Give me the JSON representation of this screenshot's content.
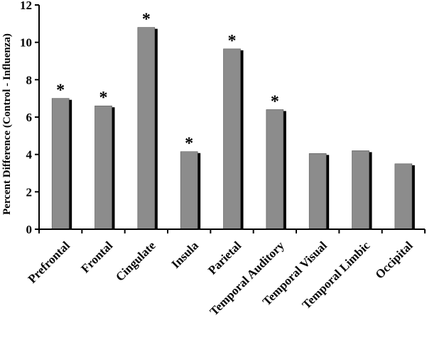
{
  "chart_data": {
    "type": "bar",
    "categories": [
      "Prefrontal",
      "Frontal",
      "Cingulate",
      "Insula",
      "Parietal",
      "Temporal Auditory",
      "Temporal Visual",
      "Temporal Limbic",
      "Occipital"
    ],
    "values": [
      7.0,
      6.6,
      10.8,
      4.15,
      9.65,
      6.4,
      4.05,
      4.2,
      3.5
    ],
    "significant": [
      true,
      true,
      true,
      true,
      true,
      true,
      false,
      false,
      false
    ],
    "significance_marker": "*",
    "ylabel": "Percent Difference (Control - Influenza)",
    "xlabel": "",
    "title": "",
    "ylim": [
      0,
      12
    ],
    "yticks": [
      "0",
      "2",
      "4",
      "6",
      "8",
      "10",
      "12"
    ],
    "grid": false,
    "legend": "none",
    "colors": {
      "bar": "#8c8c8c",
      "shadow": "#000000",
      "axis": "#000000"
    }
  }
}
